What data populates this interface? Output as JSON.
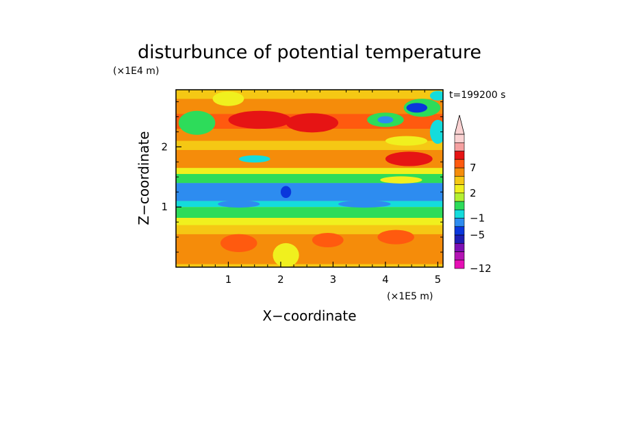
{
  "chart_data": {
    "type": "heatmap",
    "title": "disturbunce of potential temperature",
    "xlabel": "X−coordinate",
    "ylabel": "Z−coordinate",
    "x_scale_label": "(×1E5 m)",
    "y_scale_label": "(×1E4 m)",
    "time_label": "t=199200 s",
    "xlim": [
      0,
      5.1
    ],
    "ylim": [
      0,
      2.95
    ],
    "x_ticks": [
      {
        "value": 1,
        "label": "1"
      },
      {
        "value": 2,
        "label": "2"
      },
      {
        "value": 3,
        "label": "3"
      },
      {
        "value": 4,
        "label": "4"
      },
      {
        "value": 5,
        "label": "5"
      }
    ],
    "y_ticks": [
      {
        "value": 1,
        "label": "1"
      },
      {
        "value": 2,
        "label": "2"
      }
    ],
    "colorbar": {
      "levels": [
        -12,
        -11,
        -9,
        -7,
        -5,
        -3,
        -1,
        0,
        1,
        2,
        3,
        5,
        7,
        9,
        11
      ],
      "labeled_levels": [
        "7",
        "2",
        "−1",
        "−5",
        "−12"
      ],
      "colors": [
        "#e60fb4",
        "#b414b4",
        "#7d0fb4",
        "#1e1eb4",
        "#0a37dc",
        "#2d8cf0",
        "#14dcdc",
        "#2ddc5a",
        "#b4f032",
        "#f0f01e",
        "#f5c814",
        "#f58c0a",
        "#ff5a0f",
        "#e61414",
        "#f5a0a0",
        "#fad2d2"
      ],
      "extend": "max"
    },
    "bands": [
      {
        "z0": 0.0,
        "z1": 0.05,
        "level": 2
      },
      {
        "z0": 0.05,
        "z1": 0.55,
        "level": 3
      },
      {
        "z0": 0.55,
        "z1": 0.7,
        "level": 2
      },
      {
        "z0": 0.7,
        "z1": 0.82,
        "level": 1
      },
      {
        "z0": 0.82,
        "z1": 1.0,
        "level": -1
      },
      {
        "z0": 1.0,
        "z1": 1.1,
        "level": -3
      },
      {
        "z0": 1.1,
        "z1": 1.4,
        "level": -5
      },
      {
        "z0": 1.4,
        "z1": 1.55,
        "level": -1
      },
      {
        "z0": 1.55,
        "z1": 1.65,
        "level": 1
      },
      {
        "z0": 1.65,
        "z1": 1.95,
        "level": 3
      },
      {
        "z0": 1.95,
        "z1": 2.1,
        "level": 2
      },
      {
        "z0": 2.1,
        "z1": 2.3,
        "level": 3
      },
      {
        "z0": 2.3,
        "z1": 2.55,
        "level": 5
      },
      {
        "z0": 2.55,
        "z1": 2.8,
        "level": 3
      },
      {
        "z0": 2.8,
        "z1": 2.95,
        "level": 2
      }
    ],
    "blobs": [
      {
        "x": 1.2,
        "z": 0.4,
        "rx": 0.35,
        "rz": 0.15,
        "level": 5
      },
      {
        "x": 2.9,
        "z": 0.45,
        "rx": 0.3,
        "rz": 0.12,
        "level": 5
      },
      {
        "x": 4.2,
        "z": 0.5,
        "rx": 0.35,
        "rz": 0.12,
        "level": 5
      },
      {
        "x": 2.1,
        "z": 0.2,
        "rx": 0.25,
        "rz": 0.2,
        "level": 1
      },
      {
        "x": 0.4,
        "z": 2.4,
        "rx": 0.35,
        "rz": 0.2,
        "level": -1
      },
      {
        "x": 1.6,
        "z": 2.45,
        "rx": 0.6,
        "rz": 0.15,
        "level": 7
      },
      {
        "x": 2.6,
        "z": 2.4,
        "rx": 0.5,
        "rz": 0.16,
        "level": 7
      },
      {
        "x": 1.0,
        "z": 2.8,
        "rx": 0.3,
        "rz": 0.12,
        "level": 1
      },
      {
        "x": 1.5,
        "z": 1.8,
        "rx": 0.3,
        "rz": 0.06,
        "level": -3
      },
      {
        "x": 4.45,
        "z": 1.8,
        "rx": 0.45,
        "rz": 0.12,
        "level": 7
      },
      {
        "x": 4.4,
        "z": 2.1,
        "rx": 0.4,
        "rz": 0.08,
        "level": 1
      },
      {
        "x": 4.0,
        "z": 2.45,
        "rx": 0.35,
        "rz": 0.12,
        "level": -1
      },
      {
        "x": 4.0,
        "z": 2.45,
        "rx": 0.15,
        "rz": 0.06,
        "level": -5
      },
      {
        "x": 4.7,
        "z": 2.65,
        "rx": 0.35,
        "rz": 0.15,
        "level": -1
      },
      {
        "x": 4.6,
        "z": 2.65,
        "rx": 0.2,
        "rz": 0.08,
        "level": -7
      },
      {
        "x": 5.0,
        "z": 2.25,
        "rx": 0.15,
        "rz": 0.2,
        "level": -3
      },
      {
        "x": 5.0,
        "z": 2.85,
        "rx": 0.15,
        "rz": 0.08,
        "level": -3
      },
      {
        "x": 2.1,
        "z": 1.25,
        "rx": 0.1,
        "rz": 0.1,
        "level": -7
      },
      {
        "x": 1.2,
        "z": 1.05,
        "rx": 0.4,
        "rz": 0.06,
        "level": -5
      },
      {
        "x": 3.6,
        "z": 1.05,
        "rx": 0.5,
        "rz": 0.06,
        "level": -5
      },
      {
        "x": 4.3,
        "z": 1.45,
        "rx": 0.4,
        "rz": 0.06,
        "level": 1
      }
    ]
  }
}
